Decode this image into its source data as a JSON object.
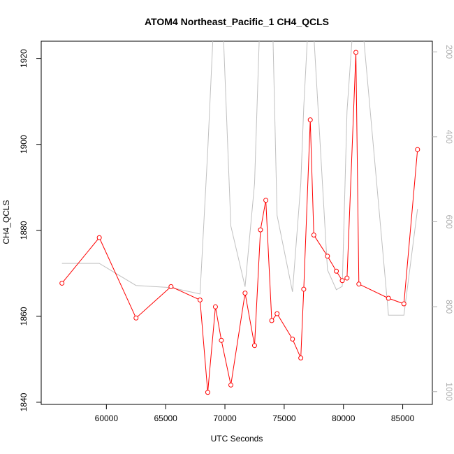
{
  "chart_data": {
    "type": "line",
    "title": "ATOM4 Northeast_Pacific_1 CH4_QCLS",
    "xlabel": "UTC Seconds",
    "ylabel": "CH4_QCLS",
    "xlim": [
      54500,
      87500
    ],
    "ylim": [
      1839.5,
      1924
    ],
    "x_ticks": [
      60000,
      65000,
      70000,
      75000,
      80000,
      85000
    ],
    "y_ticks": [
      1840,
      1860,
      1880,
      1900,
      1920
    ],
    "y2lim": [
      1030,
      175
    ],
    "y2_ticks": [
      200,
      400,
      600,
      800,
      1000
    ],
    "grid": false,
    "series": [
      {
        "color": "#ff0000",
        "marker": "open-circle",
        "x": [
          56250,
          59400,
          62500,
          65450,
          67900,
          68550,
          69200,
          69700,
          70500,
          71700,
          72500,
          73000,
          73450,
          73950,
          74400,
          75700,
          76400,
          76650,
          77200,
          77500,
          78650,
          79400,
          79900,
          80300,
          81050,
          81300,
          83800,
          85100,
          86250
        ],
        "y": [
          1867.7,
          1878.3,
          1859.6,
          1866.9,
          1863.8,
          1842.3,
          1862.2,
          1854.4,
          1844.0,
          1865.4,
          1853.2,
          1880.1,
          1887.0,
          1859.0,
          1860.6,
          1854.7,
          1850.3,
          1866.3,
          1905.7,
          1878.9,
          1874.0,
          1870.5,
          1868.3,
          1868.9,
          1921.4,
          1867.5,
          1864.2,
          1862.9,
          1898.8
        ]
      },
      {
        "color": "#c0c0c0",
        "axis": "right",
        "x": [
          56250,
          59400,
          62500,
          65450,
          67900,
          68550,
          69200,
          69700,
          70500,
          71700,
          72500,
          73000,
          73450,
          73950,
          74400,
          75700,
          76400,
          76650,
          77200,
          77500,
          78650,
          79400,
          79900,
          80300,
          81050,
          81300,
          83800,
          85100,
          86250
        ],
        "y": [
          698,
          698,
          750,
          755,
          770,
          432,
          40,
          40,
          610,
          753,
          510,
          80,
          40,
          40,
          585,
          765,
          510,
          330,
          40,
          160,
          713,
          760,
          752,
          340,
          40,
          40,
          820,
          820,
          570
        ]
      }
    ]
  }
}
